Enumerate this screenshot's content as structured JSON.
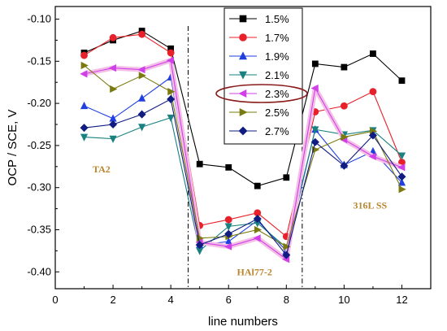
{
  "chart_data": {
    "type": "line",
    "xlabel": "line numbers",
    "ylabel": "OCP / SCE, V",
    "xlim": [
      0,
      13
    ],
    "ylim": [
      -0.42,
      -0.085
    ],
    "xticks": [
      0,
      2,
      4,
      6,
      8,
      10,
      12
    ],
    "yticks": [
      -0.1,
      -0.15,
      -0.2,
      -0.25,
      -0.3,
      -0.35,
      -0.4
    ],
    "ytick_labels": [
      "-0.10",
      "-0.15",
      "-0.20",
      "-0.25",
      "-0.30",
      "-0.35",
      "-0.40"
    ],
    "grid": false,
    "legend": "top-center",
    "x": [
      1,
      2,
      3,
      4,
      5,
      6,
      7,
      8,
      9,
      10,
      11,
      12
    ],
    "series": [
      {
        "name": "1.5%",
        "color": "#000000",
        "marker": "square",
        "values": [
          -0.14,
          -0.125,
          -0.114,
          -0.135,
          -0.272,
          -0.276,
          -0.298,
          -0.288,
          -0.153,
          -0.157,
          -0.141,
          -0.173
        ]
      },
      {
        "name": "1.7%",
        "color": "#e8202a",
        "marker": "circle",
        "values": [
          -0.143,
          -0.122,
          -0.118,
          -0.14,
          -0.345,
          -0.338,
          -0.33,
          -0.358,
          -0.21,
          -0.203,
          -0.186,
          -0.27
        ]
      },
      {
        "name": "1.9%",
        "color": "#1f3fe0",
        "marker": "triangle-up",
        "values": [
          -0.203,
          -0.218,
          -0.194,
          -0.169,
          -0.368,
          -0.364,
          -0.339,
          -0.375,
          -0.231,
          -0.273,
          -0.257,
          -0.294
        ]
      },
      {
        "name": "2.1%",
        "color": "#1a8080",
        "marker": "triangle-down",
        "values": [
          -0.24,
          -0.242,
          -0.228,
          -0.217,
          -0.375,
          -0.346,
          -0.342,
          -0.371,
          -0.231,
          -0.237,
          -0.232,
          -0.262
        ]
      },
      {
        "name": "2.3%",
        "color": "#d040e8",
        "marker": "triangle-left",
        "values": [
          -0.165,
          -0.158,
          -0.16,
          -0.149,
          -0.365,
          -0.37,
          -0.36,
          -0.385,
          -0.182,
          -0.243,
          -0.263,
          -0.276
        ]
      },
      {
        "name": "2.5%",
        "color": "#7a7a10",
        "marker": "triangle-right",
        "values": [
          -0.155,
          -0.183,
          -0.167,
          -0.186,
          -0.36,
          -0.358,
          -0.35,
          -0.37,
          -0.255,
          -0.24,
          -0.233,
          -0.302
        ]
      },
      {
        "name": "2.7%",
        "color": "#101c80",
        "marker": "diamond",
        "values": [
          -0.229,
          -0.225,
          -0.213,
          -0.195,
          -0.368,
          -0.355,
          -0.337,
          -0.38,
          -0.246,
          -0.274,
          -0.238,
          -0.287
        ]
      }
    ],
    "highlighted_series": "2.3%",
    "dividers_x": [
      4.6,
      8.55
    ],
    "annotations": [
      {
        "text": "TA2",
        "x": 1.6,
        "y": -0.282
      },
      {
        "text": "HAl77-2",
        "x": 6.9,
        "y": -0.404
      },
      {
        "text": "316L SS",
        "x": 10.9,
        "y": -0.325
      }
    ]
  }
}
